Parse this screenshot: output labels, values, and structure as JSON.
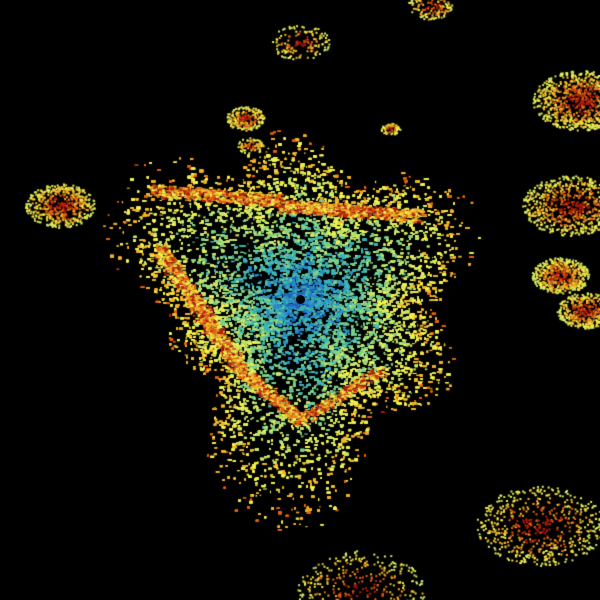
{
  "image": {
    "kind": "weather-radar-reflectivity",
    "background": "#000000",
    "palette": [
      "#1e5fb4",
      "#2a8cc8",
      "#3fb4b4",
      "#7fd08a",
      "#c8e66a",
      "#f0f050",
      "#f0b428",
      "#e06414",
      "#b41e0a"
    ],
    "radar_site_marker": "dot"
  }
}
